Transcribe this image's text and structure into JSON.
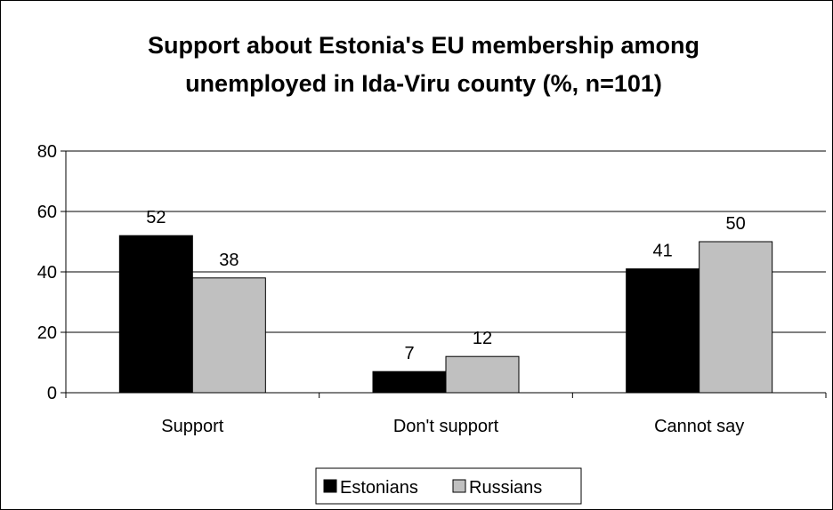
{
  "chart_data": {
    "type": "bar",
    "title_lines": [
      "Support about Estonia's EU membership among",
      "unemployed in Ida-Viru county (%, n=101)"
    ],
    "xlabel": "",
    "ylabel": "",
    "categories": [
      "Support",
      "Don't support",
      "Cannot say"
    ],
    "series": [
      {
        "name": "Estonians",
        "color": "#000000",
        "values": [
          52,
          7,
          41
        ]
      },
      {
        "name": "Russians",
        "color": "#c0c0c0",
        "values": [
          38,
          12,
          50
        ]
      }
    ],
    "ylim": [
      0,
      80
    ],
    "yticks": [
      0,
      20,
      40,
      60,
      80
    ],
    "grid": true,
    "legend_position": "bottom"
  }
}
